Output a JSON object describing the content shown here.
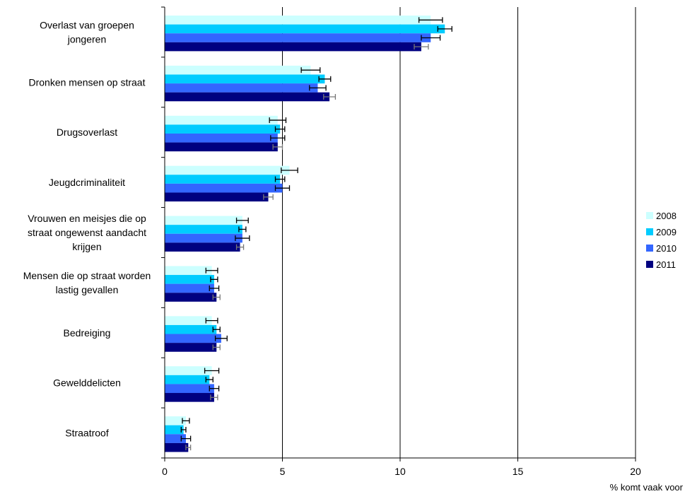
{
  "chart_data": {
    "type": "bar",
    "orientation": "horizontal",
    "categories": [
      "Overlast van groepen jongeren",
      "Dronken mensen op straat",
      "Drugsoverlast",
      "Jeugdcriminaliteit",
      "Vrouwen en meisjes die op straat ongewenst aandacht krijgen",
      "Mensen die op straat worden lastig gevallen",
      "Bedreiging",
      "Geweldelicten",
      "Straatroof"
    ],
    "category_lines": [
      [
        "Overlast van groepen",
        "jongeren"
      ],
      [
        "Dronken mensen op straat"
      ],
      [
        "Drugsoverlast"
      ],
      [
        "Jeugdcriminaliteit"
      ],
      [
        "Vrouwen en meisjes die op",
        "straat ongewenst aandacht",
        "krijgen"
      ],
      [
        "Mensen die op straat worden",
        "lastig gevallen"
      ],
      [
        "Bedreiging"
      ],
      [
        "Gewelddelicten"
      ],
      [
        "Straatroof"
      ]
    ],
    "series": [
      {
        "name": "2008",
        "color": "#ccffff",
        "values": [
          11.3,
          6.2,
          4.8,
          5.3,
          3.3,
          2.0,
          2.0,
          2.0,
          0.9
        ],
        "errors": [
          0.5,
          0.4,
          0.35,
          0.35,
          0.25,
          0.25,
          0.25,
          0.3,
          0.15
        ]
      },
      {
        "name": "2009",
        "color": "#00ccff",
        "values": [
          11.9,
          6.8,
          4.9,
          4.9,
          3.3,
          2.1,
          2.2,
          1.9,
          0.8
        ],
        "errors": [
          0.3,
          0.25,
          0.2,
          0.2,
          0.15,
          0.15,
          0.15,
          0.15,
          0.1
        ]
      },
      {
        "name": "2010",
        "color": "#3366ff",
        "values": [
          11.3,
          6.5,
          4.8,
          5.0,
          3.3,
          2.1,
          2.4,
          2.1,
          0.9
        ],
        "errors": [
          0.4,
          0.35,
          0.3,
          0.3,
          0.3,
          0.2,
          0.25,
          0.2,
          0.2
        ]
      },
      {
        "name": "2011",
        "color": "#000080",
        "values": [
          10.9,
          7.0,
          4.8,
          4.4,
          3.2,
          2.2,
          2.2,
          2.1,
          1.0
        ],
        "errors": [
          0.3,
          0.25,
          0.2,
          0.2,
          0.15,
          0.15,
          0.15,
          0.15,
          0.1
        ]
      }
    ],
    "xlim": [
      0,
      20
    ],
    "xticks": [
      "0",
      "5",
      "10",
      "15",
      "20"
    ],
    "xlabel": "% komt vaak voor",
    "legend_position": "right",
    "grid": "vertical major lines"
  }
}
